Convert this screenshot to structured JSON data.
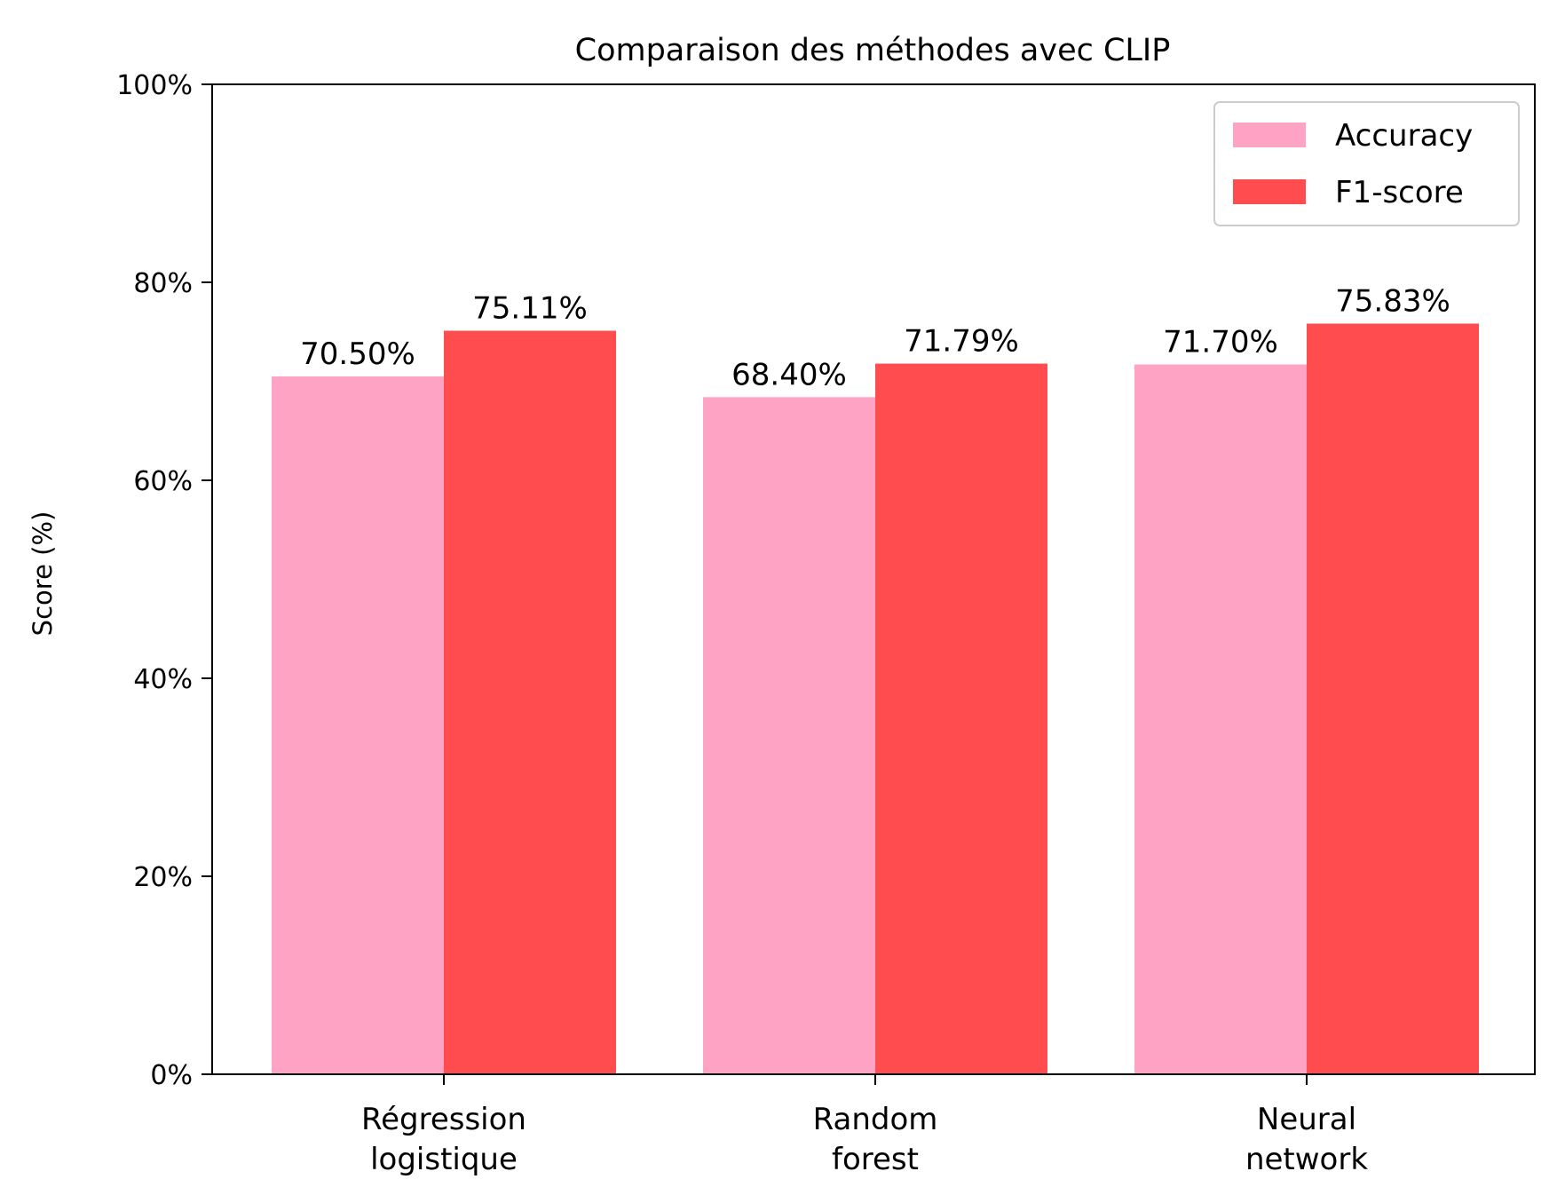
{
  "chart_data": {
    "type": "bar",
    "title": "Comparaison des méthodes avec CLIP",
    "xlabel": "",
    "ylabel": "Score (%)",
    "ylim": [
      0,
      100
    ],
    "yticks": [
      0,
      20,
      40,
      60,
      80,
      100
    ],
    "ytick_labels": [
      "0%",
      "20%",
      "40%",
      "60%",
      "80%",
      "100%"
    ],
    "categories": [
      [
        "Régression",
        "logistique"
      ],
      [
        "Random",
        "forest"
      ],
      [
        "Neural",
        "network"
      ]
    ],
    "series": [
      {
        "name": "Accuracy",
        "color": "#ffa3c4",
        "values": [
          70.5,
          68.4,
          71.7
        ],
        "labels": [
          "70.50%",
          "68.40%",
          "71.70%"
        ]
      },
      {
        "name": "F1-score",
        "color": "#ff4d4f",
        "values": [
          75.11,
          71.79,
          75.83
        ],
        "labels": [
          "75.11%",
          "71.79%",
          "75.83%"
        ]
      }
    ],
    "grid": false,
    "legend_position": "top-right"
  }
}
